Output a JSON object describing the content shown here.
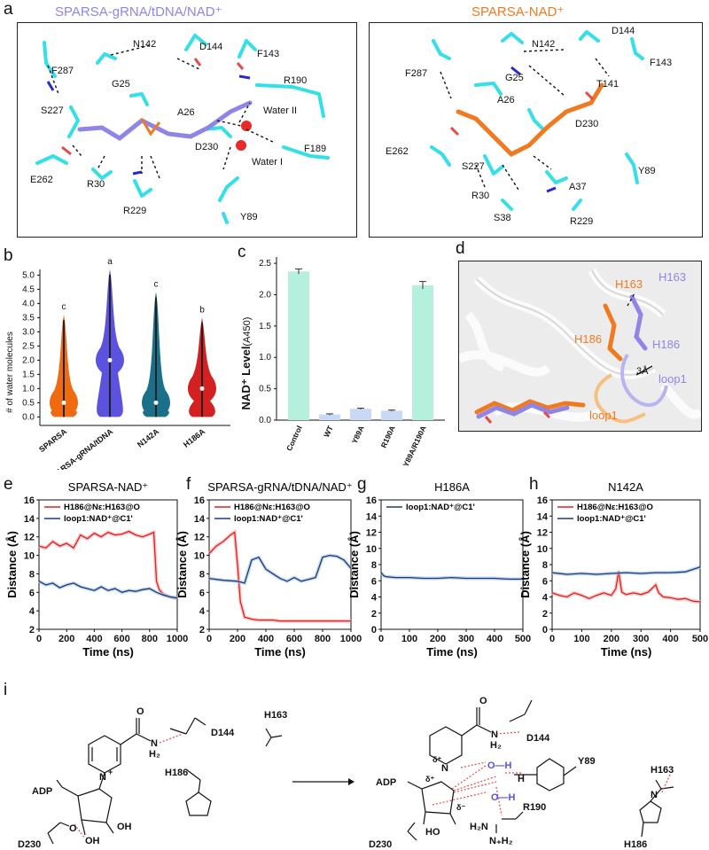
{
  "panel_labels": {
    "a": "a",
    "b": "b",
    "c": "c",
    "d": "d",
    "e": "e",
    "f": "f",
    "g": "g",
    "h": "h",
    "i": "i"
  },
  "panel_a": {
    "left": {
      "title": "SPARSA-gRNA/tDNA/NAD⁺",
      "title_color": "#8f85e8",
      "labels": [
        "F287",
        "N142",
        "D144",
        "F143",
        "R190",
        "G25",
        "S227",
        "A26",
        "Water II",
        "D230",
        "F189",
        "Water I",
        "E262",
        "R30",
        "R229",
        "Y89"
      ]
    },
    "right": {
      "title": "SPARSA-NAD⁺",
      "title_color": "#f07a20",
      "labels": [
        "F287",
        "N142",
        "D144",
        "F143",
        "G25",
        "T141",
        "A26",
        "D230",
        "E262",
        "S227",
        "Y89",
        "A37",
        "R30",
        "S38",
        "R229"
      ]
    }
  },
  "panel_d": {
    "labels": [
      "H163",
      "H163",
      "H186",
      "H186",
      "loop1",
      "loop1",
      "3Å"
    ]
  },
  "chart_data": [
    {
      "panel": "b",
      "type": "violin",
      "ylabel": "# of water molecules",
      "ylim": [
        -0.3,
        5.2
      ],
      "yticks": [
        "0.0",
        "0.5",
        "1.0",
        "1.5",
        "2.0",
        "2.5",
        "3.0",
        "3.5",
        "4.0",
        "4.5",
        "5.0"
      ],
      "categories": [
        "SPARSA",
        "SPARSA-gRNA/tDNA",
        "N142A",
        "H186A"
      ],
      "colors": [
        "#f06a10",
        "#5b52e0",
        "#1a7088",
        "#d42020"
      ],
      "max": [
        3.6,
        5.2,
        4.4,
        3.5
      ],
      "median": [
        0.5,
        2.0,
        0.5,
        1.0
      ],
      "significance": [
        "c",
        "a",
        "c",
        "b"
      ]
    },
    {
      "panel": "c",
      "type": "bar",
      "ylabel": "NAD⁺ Level",
      "ylabel_unit": "(A450)",
      "categories": [
        "Control",
        "WT",
        "Y89A",
        "R190A",
        "Y89A/R190A"
      ],
      "values": [
        2.37,
        0.09,
        0.18,
        0.15,
        2.15
      ],
      "errors": [
        0.04,
        0.01,
        0.01,
        0.01,
        0.06
      ],
      "colors": [
        "#b5f0dc",
        "#c8d8f5",
        "#c8d8f5",
        "#c8d8f5",
        "#b5f0dc"
      ],
      "yticks": [
        "0.0",
        "0.5",
        "1.0",
        "1.5",
        "2.0",
        "2.5"
      ],
      "ylim": [
        0,
        2.6
      ]
    },
    {
      "panel": "e",
      "type": "line",
      "title": "SPARSA-NAD⁺",
      "xlabel": "Time (ns)",
      "ylabel": "Distance (Å)",
      "xlim": [
        0,
        1000
      ],
      "ylim": [
        2,
        16
      ],
      "xticks": [
        "0",
        "200",
        "400",
        "600",
        "800",
        "1000"
      ],
      "yticks": [
        "2",
        "4",
        "6",
        "8",
        "10",
        "12",
        "14",
        "16"
      ],
      "legend": [
        "H186@Nε:H163@O",
        "loop1:NAD⁺@C1'"
      ],
      "series": [
        {
          "name": "H186@Nε:H163@O",
          "color": "#e02020",
          "x": [
            0,
            50,
            100,
            150,
            200,
            250,
            300,
            350,
            400,
            450,
            500,
            550,
            600,
            650,
            700,
            750,
            800,
            830,
            850,
            870,
            900,
            950,
            1000
          ],
          "y": [
            11.0,
            10.8,
            11.5,
            11.0,
            11.3,
            10.8,
            12.2,
            11.8,
            12.4,
            12.0,
            12.5,
            12.2,
            12.3,
            12.6,
            12.2,
            12.0,
            12.3,
            12.5,
            7.2,
            6.3,
            5.8,
            5.5,
            5.3
          ]
        },
        {
          "name": "loop1:NAD⁺@C1'",
          "color": "#1c3c78",
          "x": [
            0,
            50,
            100,
            150,
            200,
            250,
            300,
            350,
            400,
            450,
            500,
            550,
            600,
            650,
            700,
            750,
            800,
            850,
            900,
            950,
            1000
          ],
          "y": [
            7.2,
            6.8,
            7.0,
            6.5,
            6.8,
            7.0,
            6.6,
            6.4,
            6.2,
            6.6,
            6.2,
            6.4,
            6.0,
            6.2,
            6.1,
            6.3,
            6.4,
            6.0,
            5.7,
            5.5,
            5.4
          ]
        }
      ]
    },
    {
      "panel": "f",
      "type": "line",
      "title": "SPARSA-gRNA/tDNA/NAD⁺",
      "xlabel": "Time (ns)",
      "ylabel": "Distance (Å)",
      "xlim": [
        0,
        1000
      ],
      "ylim": [
        2,
        16
      ],
      "xticks": [
        "0",
        "200",
        "400",
        "600",
        "800",
        "1000"
      ],
      "yticks": [
        "2",
        "4",
        "6",
        "8",
        "10",
        "12",
        "14",
        "16"
      ],
      "legend": [
        "H186@Nε:H163@O",
        "loop1:NAD⁺@C1'"
      ],
      "series": [
        {
          "name": "H186@Nε:H163@O",
          "color": "#e02020",
          "x": [
            0,
            50,
            100,
            150,
            180,
            200,
            220,
            250,
            300,
            350,
            400,
            450,
            500,
            600,
            700,
            800,
            900,
            1000
          ],
          "y": [
            10.2,
            11.0,
            11.5,
            12.2,
            12.5,
            9.0,
            5.0,
            3.3,
            3.1,
            3.0,
            3.0,
            3.0,
            2.9,
            2.9,
            2.9,
            2.9,
            2.9,
            2.9
          ]
        },
        {
          "name": "loop1:NAD⁺@C1'",
          "color": "#1c3c78",
          "x": [
            0,
            100,
            200,
            250,
            300,
            350,
            400,
            450,
            500,
            550,
            600,
            650,
            700,
            750,
            800,
            850,
            900,
            950,
            1000
          ],
          "y": [
            7.5,
            7.3,
            7.2,
            7.0,
            9.5,
            9.8,
            8.5,
            8.0,
            7.5,
            7.2,
            7.6,
            7.2,
            7.4,
            7.6,
            9.8,
            10.0,
            9.9,
            9.5,
            8.6
          ]
        }
      ]
    },
    {
      "panel": "g",
      "type": "line",
      "title": "H186A",
      "xlabel": "Time (ns)",
      "ylabel": "Distance (Å)",
      "xlim": [
        0,
        500
      ],
      "ylim": [
        0,
        16
      ],
      "xticks": [
        "0",
        "100",
        "200",
        "300",
        "400",
        "500"
      ],
      "yticks": [
        "0",
        "2",
        "4",
        "6",
        "8",
        "10",
        "12",
        "14",
        "16"
      ],
      "legend": [
        "loop1:NAD⁺@C1'"
      ],
      "series": [
        {
          "name": "loop1:NAD⁺@C1'",
          "color": "#1c3c78",
          "x": [
            0,
            10,
            20,
            50,
            100,
            150,
            200,
            250,
            300,
            350,
            400,
            450,
            500
          ],
          "y": [
            7.0,
            6.6,
            6.5,
            6.4,
            6.4,
            6.3,
            6.3,
            6.4,
            6.3,
            6.3,
            6.3,
            6.2,
            6.2
          ]
        }
      ]
    },
    {
      "panel": "h",
      "type": "line",
      "title": "N142A",
      "xlabel": "Time (ns)",
      "ylabel": "Distance (Å)",
      "xlim": [
        0,
        500
      ],
      "ylim": [
        0,
        16
      ],
      "xticks": [
        "0",
        "100",
        "200",
        "300",
        "400",
        "500"
      ],
      "yticks": [
        "0",
        "2",
        "4",
        "6",
        "8",
        "10",
        "12",
        "14",
        "16"
      ],
      "legend": [
        "H186@Nε:H163@O",
        "loop1:NAD⁺@C1'"
      ],
      "series": [
        {
          "name": "H186@Nε:H163@O",
          "color": "#e02020",
          "x": [
            0,
            25,
            50,
            75,
            100,
            125,
            150,
            175,
            200,
            215,
            225,
            235,
            250,
            275,
            300,
            325,
            350,
            360,
            375,
            400,
            425,
            450,
            475,
            500
          ],
          "y": [
            4.5,
            4.2,
            4.0,
            4.5,
            4.2,
            3.8,
            4.2,
            4.5,
            4.2,
            5.0,
            7.2,
            4.6,
            4.3,
            4.5,
            4.3,
            4.6,
            5.5,
            4.5,
            4.0,
            3.9,
            3.7,
            3.8,
            3.5,
            3.4
          ]
        },
        {
          "name": "loop1:NAD⁺@C1'",
          "color": "#1c3c78",
          "x": [
            0,
            50,
            100,
            150,
            200,
            250,
            300,
            350,
            400,
            450,
            500
          ],
          "y": [
            7.0,
            6.8,
            6.9,
            6.8,
            6.9,
            7.0,
            6.9,
            7.0,
            7.0,
            7.1,
            7.7
          ]
        }
      ]
    }
  ],
  "panel_i": {
    "left": {
      "D144": "D144",
      "H163": "H163",
      "H186": "H186",
      "ADP": "ADP",
      "D230": "D230",
      "OH1": "OH",
      "OH2": "OH",
      "NH2": "H₂",
      "N": "N",
      "Nplus": "+",
      "Ominus": "O",
      "minus": "-"
    },
    "right": {
      "D144": "D144",
      "H163": "H163",
      "H186": "H186",
      "ADP": "ADP",
      "D230": "D230",
      "Y89": "Y89",
      "R190": "R190",
      "HO": "HO",
      "deltaplus1": "δ⁺",
      "deltaplus2": "δ⁺",
      "deltaminus": "δ⁻",
      "water1": "O—H",
      "water2": "O—H",
      "H": "H",
      "H2N": "H₂N",
      "NH2plus": "N₊H₂",
      "N": "N",
      "NH": "N"
    }
  }
}
